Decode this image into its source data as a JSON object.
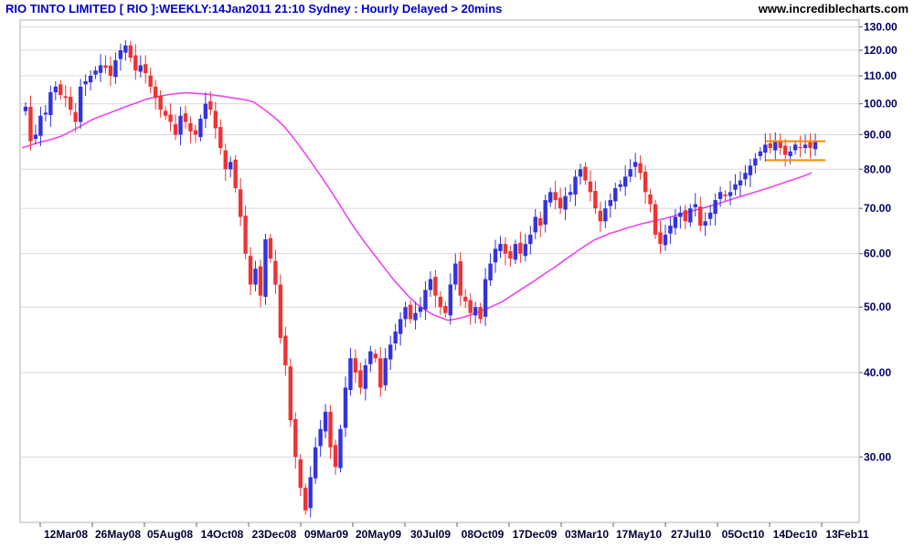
{
  "header": {
    "title": "RIO TINTO LIMITED [ RIO ]:WEEKLY:14Jan2011 21:10 Sydney : Hourly Delayed > 20mins",
    "site": "www.incrediblecharts.com"
  },
  "chart_data": {
    "type": "candlestick",
    "scale": "log",
    "ylim": [
      24,
      133
    ],
    "y_ticks": [
      30,
      40,
      50,
      60,
      70,
      80,
      90,
      100,
      110,
      120,
      130
    ],
    "y_tick_labels": [
      "30.00",
      "40.00",
      "50.00",
      "60.00",
      "70.00",
      "80.00",
      "90.00",
      "100.00",
      "110.00",
      "120.00",
      "130.00"
    ],
    "x_tick_labels": [
      "12Mar08",
      "26May08",
      "05Aug08",
      "14Oct08",
      "23Dec08",
      "09Mar09",
      "20May09",
      "30Jul09",
      "08Oct09",
      "17Dec09",
      "03Mar10",
      "17May10",
      "27Jul10",
      "05Oct10",
      "14Dec10",
      "13Feb11"
    ],
    "colors": {
      "up": "#3333dd",
      "down": "#ee3333",
      "ma": "#ee44ee",
      "channel": "#ff8800",
      "grid": "#d8d8d8"
    },
    "closes": [
      99,
      88,
      90,
      96,
      97,
      104,
      106,
      103,
      102,
      98,
      94,
      106,
      108,
      110,
      112,
      114,
      113,
      110,
      116,
      120,
      122,
      117,
      112,
      114,
      111,
      106,
      102,
      98,
      96,
      94,
      90,
      96,
      94,
      91,
      90,
      95,
      100,
      98,
      92,
      86,
      80,
      82,
      75,
      68,
      60,
      54,
      57,
      52,
      63,
      59,
      54,
      45,
      41,
      34,
      30,
      27,
      25,
      28,
      31,
      33,
      35,
      31,
      29,
      33,
      38,
      42,
      40,
      38,
      41,
      43,
      42,
      38,
      42,
      44,
      46,
      48,
      50,
      48,
      49,
      50,
      53,
      55,
      52,
      50,
      49,
      54,
      58,
      52,
      51,
      49,
      50,
      48,
      55,
      58,
      61,
      62,
      60,
      59,
      62,
      60,
      62,
      64,
      68,
      66,
      72,
      74,
      72,
      70,
      73,
      74,
      78,
      80,
      77,
      74,
      70,
      67,
      70,
      72,
      75,
      76,
      78,
      80,
      82,
      79,
      74,
      71,
      64,
      62,
      64,
      66,
      68,
      69,
      67,
      70,
      71,
      66,
      67,
      69,
      72,
      74,
      73,
      74,
      76,
      77,
      79,
      81,
      83,
      85,
      87,
      86,
      88,
      86,
      84,
      85,
      87,
      86,
      87,
      86,
      88
    ],
    "ma": [
      86,
      86.8,
      87.5,
      88.1,
      88.7,
      89.5,
      90.6,
      91.9,
      93.2,
      94.6,
      95.7,
      96.6,
      97.6,
      98.6,
      99.6,
      100.5,
      101.5,
      102.2,
      102.7,
      103.2,
      103.5,
      103.8,
      103.7,
      103.5,
      103.3,
      102.9,
      102.6,
      102.1,
      101.7,
      101.3,
      100.5,
      98.6,
      96.7,
      94.6,
      92.2,
      89.2,
      86.2,
      83.1,
      80,
      77,
      74,
      71,
      68,
      65.4,
      63,
      60.8,
      58.8,
      56.8,
      54.9,
      53.3,
      51.8,
      50.5,
      49.6,
      48.8,
      48.3,
      47.8,
      48,
      48.3,
      48.7,
      49.2,
      49.7,
      50.3,
      50.9,
      51.8,
      52.7,
      53.6,
      54.5,
      55.5,
      56.5,
      57.5,
      58.6,
      59.7,
      60.8,
      61.9,
      62.9,
      63.6,
      64.3,
      64.8,
      65.4,
      65.9,
      66.4,
      66.8,
      67.2,
      67.6,
      68.1,
      68.6,
      69.1,
      69.6,
      70.1,
      70.6,
      71.2,
      71.8,
      72.4,
      73,
      73.6,
      74.2,
      74.8,
      75.4,
      76.1,
      76.8,
      77.5,
      78.2,
      79
    ]
  }
}
